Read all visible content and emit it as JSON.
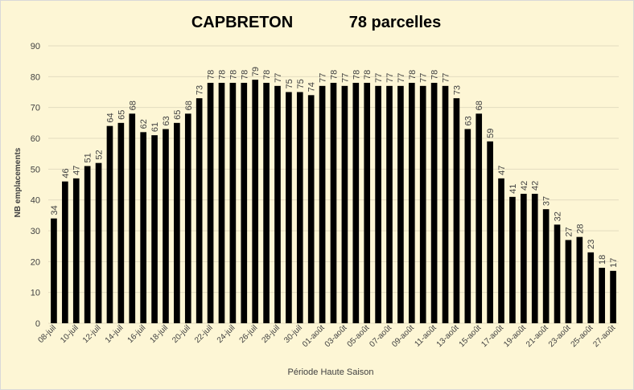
{
  "chart_data": {
    "type": "bar",
    "title": "CAPBRETON",
    "subtitle": "78 parcelles",
    "xlabel": "Période Haute Saison",
    "ylabel": "NB emplacements",
    "ylim": [
      0,
      90
    ],
    "yticks": [
      0,
      10,
      20,
      30,
      40,
      50,
      60,
      70,
      80,
      90
    ],
    "grid": true,
    "bar_color": "#000000",
    "background": "#fdf6d5",
    "categories": [
      "08-juil",
      "09-juil",
      "10-juil",
      "11-juil",
      "12-juil",
      "13-juil",
      "14-juil",
      "15-juil",
      "16-juil",
      "17-juil",
      "18-juil",
      "19-juil",
      "20-juil",
      "21-juil",
      "22-juil",
      "23-juil",
      "24-juil",
      "25-juil",
      "26-juil",
      "27-juil",
      "28-juil",
      "29-juil",
      "30-juil",
      "31-juil",
      "01-août",
      "02-août",
      "03-août",
      "04-août",
      "05-août",
      "06-août",
      "07-août",
      "08-août",
      "09-août",
      "10-août",
      "11-août",
      "12-août",
      "13-août",
      "14-août",
      "15-août",
      "16-août",
      "17-août",
      "18-août",
      "19-août",
      "20-août",
      "21-août",
      "22-août",
      "23-août",
      "24-août",
      "25-août",
      "26-août",
      "27-août"
    ],
    "tick_labels": [
      "08-juil",
      "10-juil",
      "12-juil",
      "14-juil",
      "16-juil",
      "18-juil",
      "20-juil",
      "22-juil",
      "24-juil",
      "26-juil",
      "28-juil",
      "30-juil",
      "01-août",
      "03-août",
      "05-août",
      "07-août",
      "09-août",
      "11-août",
      "13-août",
      "15-août",
      "17-août",
      "19-août",
      "21-août",
      "23-août",
      "25-août",
      "27-août"
    ],
    "values": [
      34,
      46,
      47,
      51,
      52,
      64,
      65,
      68,
      62,
      61,
      63,
      65,
      68,
      73,
      78,
      78,
      78,
      78,
      79,
      78,
      77,
      75,
      75,
      74,
      77,
      78,
      77,
      78,
      78,
      77,
      77,
      77,
      78,
      77,
      78,
      77,
      73,
      63,
      68,
      59,
      47,
      41,
      42,
      42,
      37,
      32,
      27,
      28,
      23,
      18,
      17
    ]
  }
}
